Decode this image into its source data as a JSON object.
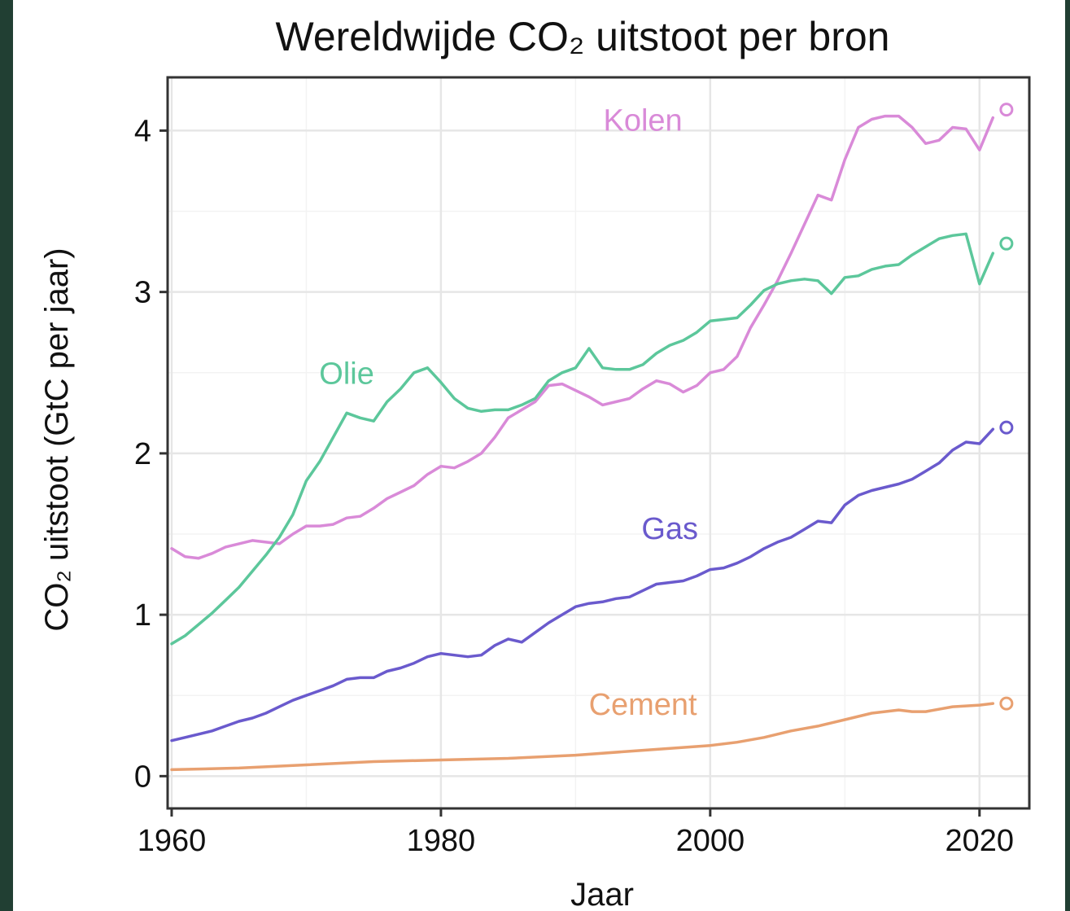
{
  "chart_data": {
    "type": "line",
    "title": "Wereldwijde CO₂ uitstoot per bron",
    "xlabel": "Jaar",
    "ylabel": "CO₂ uitstoot (GtC per jaar)",
    "xlim": [
      1959.7,
      2023.7
    ],
    "ylim": [
      -0.2,
      4.33
    ],
    "xticks": [
      1960,
      1980,
      2000,
      2020
    ],
    "yticks": [
      0,
      1,
      2,
      3,
      4
    ],
    "grid": true,
    "legend": "direct labels",
    "series": [
      {
        "name": "Kolen",
        "color": "#d98ad8",
        "x": [
          1960,
          1961,
          1962,
          1963,
          1964,
          1965,
          1966,
          1967,
          1968,
          1969,
          1970,
          1971,
          1972,
          1973,
          1974,
          1975,
          1976,
          1977,
          1978,
          1979,
          1980,
          1981,
          1982,
          1983,
          1984,
          1985,
          1986,
          1987,
          1988,
          1989,
          1990,
          1991,
          1992,
          1993,
          1994,
          1995,
          1996,
          1997,
          1998,
          1999,
          2000,
          2001,
          2002,
          2003,
          2004,
          2005,
          2006,
          2007,
          2008,
          2009,
          2010,
          2011,
          2012,
          2013,
          2014,
          2015,
          2016,
          2017,
          2018,
          2019,
          2020,
          2021
        ],
        "values": [
          1.41,
          1.36,
          1.35,
          1.38,
          1.42,
          1.44,
          1.46,
          1.45,
          1.44,
          1.5,
          1.55,
          1.55,
          1.56,
          1.6,
          1.61,
          1.66,
          1.72,
          1.76,
          1.8,
          1.87,
          1.92,
          1.91,
          1.95,
          2.0,
          2.1,
          2.22,
          2.27,
          2.32,
          2.42,
          2.43,
          2.39,
          2.35,
          2.3,
          2.32,
          2.34,
          2.4,
          2.45,
          2.43,
          2.38,
          2.42,
          2.5,
          2.52,
          2.6,
          2.78,
          2.92,
          3.07,
          3.24,
          3.42,
          3.6,
          3.57,
          3.82,
          4.02,
          4.07,
          4.09,
          4.09,
          4.02,
          3.92,
          3.94,
          4.02,
          4.01,
          3.88,
          4.08
        ]
      },
      {
        "name": "Olie",
        "color": "#5cc79b",
        "x": [
          1960,
          1961,
          1962,
          1963,
          1964,
          1965,
          1966,
          1967,
          1968,
          1969,
          1970,
          1971,
          1972,
          1973,
          1974,
          1975,
          1976,
          1977,
          1978,
          1979,
          1980,
          1981,
          1982,
          1983,
          1984,
          1985,
          1986,
          1987,
          1988,
          1989,
          1990,
          1991,
          1992,
          1993,
          1994,
          1995,
          1996,
          1997,
          1998,
          1999,
          2000,
          2001,
          2002,
          2003,
          2004,
          2005,
          2006,
          2007,
          2008,
          2009,
          2010,
          2011,
          2012,
          2013,
          2014,
          2015,
          2016,
          2017,
          2018,
          2019,
          2020,
          2021
        ],
        "values": [
          0.82,
          0.87,
          0.94,
          1.01,
          1.09,
          1.17,
          1.27,
          1.37,
          1.48,
          1.62,
          1.83,
          1.95,
          2.1,
          2.25,
          2.22,
          2.2,
          2.32,
          2.4,
          2.5,
          2.53,
          2.44,
          2.34,
          2.28,
          2.26,
          2.27,
          2.27,
          2.3,
          2.34,
          2.45,
          2.5,
          2.53,
          2.65,
          2.53,
          2.52,
          2.52,
          2.55,
          2.62,
          2.67,
          2.7,
          2.75,
          2.82,
          2.83,
          2.84,
          2.92,
          3.01,
          3.05,
          3.07,
          3.08,
          3.07,
          2.99,
          3.09,
          3.1,
          3.14,
          3.16,
          3.17,
          3.23,
          3.28,
          3.33,
          3.35,
          3.36,
          3.05,
          3.24
        ]
      },
      {
        "name": "Gas",
        "color": "#6a5acd",
        "x": [
          1960,
          1961,
          1962,
          1963,
          1964,
          1965,
          1966,
          1967,
          1968,
          1969,
          1970,
          1971,
          1972,
          1973,
          1974,
          1975,
          1976,
          1977,
          1978,
          1979,
          1980,
          1981,
          1982,
          1983,
          1984,
          1985,
          1986,
          1987,
          1988,
          1989,
          1990,
          1991,
          1992,
          1993,
          1994,
          1995,
          1996,
          1997,
          1998,
          1999,
          2000,
          2001,
          2002,
          2003,
          2004,
          2005,
          2006,
          2007,
          2008,
          2009,
          2010,
          2011,
          2012,
          2013,
          2014,
          2015,
          2016,
          2017,
          2018,
          2019,
          2020,
          2021
        ],
        "values": [
          0.22,
          0.24,
          0.26,
          0.28,
          0.31,
          0.34,
          0.36,
          0.39,
          0.43,
          0.47,
          0.5,
          0.53,
          0.56,
          0.6,
          0.61,
          0.61,
          0.65,
          0.67,
          0.7,
          0.74,
          0.76,
          0.75,
          0.74,
          0.75,
          0.81,
          0.85,
          0.83,
          0.89,
          0.95,
          1.0,
          1.05,
          1.07,
          1.08,
          1.1,
          1.11,
          1.15,
          1.19,
          1.2,
          1.21,
          1.24,
          1.28,
          1.29,
          1.32,
          1.36,
          1.41,
          1.45,
          1.48,
          1.53,
          1.58,
          1.57,
          1.68,
          1.74,
          1.77,
          1.79,
          1.81,
          1.84,
          1.89,
          1.94,
          2.02,
          2.07,
          2.06,
          2.15
        ]
      },
      {
        "name": "Cement",
        "color": "#e8a070",
        "x": [
          1960,
          1965,
          1970,
          1975,
          1980,
          1985,
          1990,
          1995,
          2000,
          2002,
          2004,
          2006,
          2008,
          2009,
          2010,
          2012,
          2014,
          2015,
          2016,
          2018,
          2020,
          2021
        ],
        "values": [
          0.04,
          0.05,
          0.07,
          0.09,
          0.1,
          0.11,
          0.13,
          0.16,
          0.19,
          0.21,
          0.24,
          0.28,
          0.31,
          0.33,
          0.35,
          0.39,
          0.41,
          0.4,
          0.4,
          0.43,
          0.44,
          0.45
        ]
      }
    ],
    "endpoints": [
      {
        "series": "Kolen",
        "x": 2022,
        "value": 4.13
      },
      {
        "series": "Olie",
        "x": 2022,
        "value": 3.3
      },
      {
        "series": "Gas",
        "x": 2022,
        "value": 2.16
      },
      {
        "series": "Cement",
        "x": 2022,
        "value": 0.45
      }
    ],
    "direct_labels": [
      {
        "text": "Kolen",
        "series": "Kolen",
        "x": 1995,
        "value": 4.0
      },
      {
        "text": "Olie",
        "series": "Olie",
        "x": 1973,
        "value": 2.43
      },
      {
        "text": "Gas",
        "series": "Gas",
        "x": 1997,
        "value": 1.47
      },
      {
        "text": "Cement",
        "series": "Cement",
        "x": 1995,
        "value": 0.38
      }
    ]
  }
}
